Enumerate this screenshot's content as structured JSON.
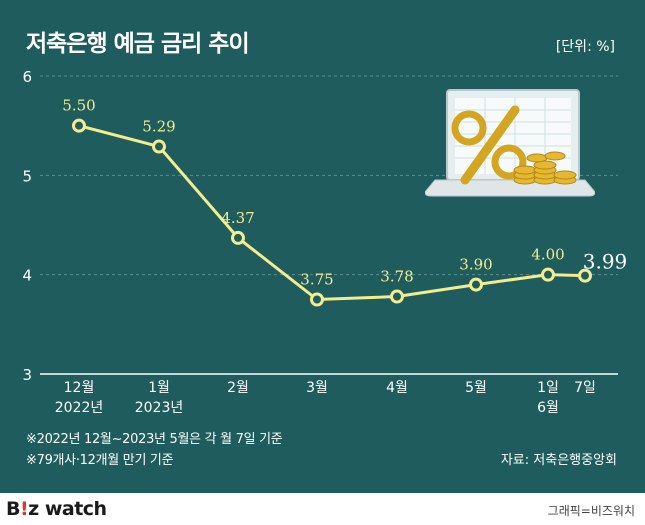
{
  "header": {
    "title": "저축은행 예금 금리 추이",
    "unit": "[단위: %]"
  },
  "notes": [
    "※2022년 12월~2023년 5월은 각 월 7일 기준",
    "※79개사·12개월 만기 기준"
  ],
  "source": "자료: 저축은행중앙회",
  "footer": {
    "brand_b": "B",
    "brand_dot": "!",
    "brand_z": "z",
    "brand_watch": " watch",
    "credit": "그래픽=비즈워치"
  },
  "colors": {
    "background": "#1f5c5d",
    "line": "#f4ec8f",
    "grid": "#5b8f8f"
  },
  "illustration": {
    "icon": "percent-laptop-coins-icon"
  },
  "chart_data": {
    "type": "line",
    "title": "저축은행 예금 금리 추이",
    "ylim": [
      3,
      6
    ],
    "yticks": [
      3,
      4,
      5,
      6
    ],
    "grid": true,
    "categories": [
      [
        "12월",
        "2022년"
      ],
      [
        "1월",
        "2023년"
      ],
      [
        "2월"
      ],
      [
        "3월"
      ],
      [
        "4월"
      ],
      [
        "5월"
      ],
      [
        "1일",
        "6월"
      ],
      [
        "7일"
      ]
    ],
    "values": [
      5.5,
      5.29,
      4.37,
      3.75,
      3.78,
      3.9,
      4.0,
      3.99
    ],
    "labels": [
      "5.50",
      "5.29",
      "4.37",
      "3.75",
      "3.78",
      "3.90",
      "4.00",
      "3.99"
    ]
  }
}
